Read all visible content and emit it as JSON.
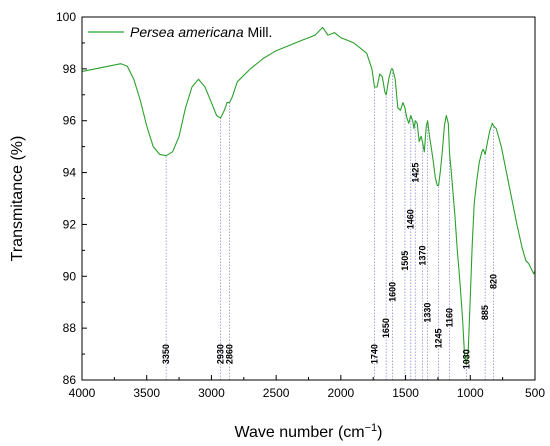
{
  "chart_data": {
    "type": "line",
    "xlabel_main": "Wave number (cm",
    "xlabel_sup": "−1",
    "xlabel_end": ")",
    "ylabel": "Transmitance (%)",
    "xlim": [
      4000,
      500
    ],
    "ylim": [
      86,
      100
    ],
    "x_ticks": [
      4000,
      3500,
      3000,
      2500,
      2000,
      1500,
      1000,
      500
    ],
    "y_ticks": [
      86,
      88,
      90,
      92,
      94,
      96,
      98,
      100
    ],
    "legend": {
      "italic": "Persea americana",
      "normal": " Mill.",
      "placement": "top-left"
    },
    "series": [
      {
        "name": "Persea americana Mill.",
        "color": "#2ca02c",
        "x": [
          4000,
          3900,
          3800,
          3700,
          3650,
          3600,
          3550,
          3500,
          3450,
          3400,
          3350,
          3300,
          3250,
          3200,
          3150,
          3100,
          3050,
          3000,
          2960,
          2930,
          2900,
          2880,
          2860,
          2840,
          2800,
          2700,
          2600,
          2500,
          2400,
          2300,
          2250,
          2200,
          2160,
          2140,
          2100,
          2050,
          2000,
          1950,
          1900,
          1850,
          1800,
          1760,
          1740,
          1720,
          1700,
          1680,
          1660,
          1650,
          1630,
          1610,
          1600,
          1580,
          1560,
          1540,
          1520,
          1505,
          1490,
          1475,
          1460,
          1445,
          1435,
          1425,
          1410,
          1395,
          1380,
          1370,
          1355,
          1340,
          1330,
          1315,
          1300,
          1285,
          1270,
          1255,
          1245,
          1230,
          1215,
          1200,
          1185,
          1170,
          1160,
          1150,
          1140,
          1120,
          1100,
          1080,
          1060,
          1045,
          1030,
          1015,
          1000,
          985,
          970,
          950,
          930,
          910,
          900,
          885,
          870,
          850,
          830,
          820,
          800,
          760,
          720,
          680,
          640,
          600,
          570,
          550,
          530,
          510,
          500
        ],
        "y": [
          97.9,
          98.0,
          98.1,
          98.2,
          98.1,
          97.6,
          96.8,
          95.8,
          95.0,
          94.7,
          94.65,
          94.8,
          95.4,
          96.5,
          97.3,
          97.6,
          97.3,
          96.7,
          96.2,
          96.1,
          96.4,
          96.7,
          96.7,
          96.9,
          97.5,
          98.0,
          98.4,
          98.7,
          98.9,
          99.1,
          99.2,
          99.3,
          99.5,
          99.6,
          99.3,
          99.4,
          99.2,
          99.1,
          99.0,
          98.8,
          98.6,
          98.0,
          97.3,
          97.3,
          97.8,
          97.7,
          97.1,
          97.0,
          97.6,
          98.0,
          98.0,
          97.6,
          96.5,
          96.4,
          96.7,
          96.5,
          96.1,
          95.9,
          96.2,
          96.0,
          95.7,
          96.0,
          95.9,
          95.2,
          95.4,
          95.2,
          94.8,
          95.8,
          96.0,
          95.4,
          94.9,
          94.4,
          93.8,
          93.5,
          93.5,
          94.1,
          94.9,
          95.8,
          96.2,
          95.9,
          94.7,
          94.2,
          93.6,
          92.4,
          91.0,
          89.8,
          88.4,
          87.0,
          86.6,
          87.2,
          89.2,
          91.2,
          92.8,
          93.7,
          94.4,
          94.8,
          94.9,
          94.7,
          95.1,
          95.6,
          95.9,
          95.8,
          95.7,
          95.0,
          94.0,
          93.0,
          92.0,
          91.1,
          90.6,
          90.5,
          90.3,
          90.1,
          90.2
        ]
      }
    ],
    "peak_labels": [
      {
        "label": "3350",
        "x": 3350,
        "label_y": 87.0
      },
      {
        "label": "2930",
        "x": 2930,
        "label_y": 87.0
      },
      {
        "label": "2860",
        "x": 2860,
        "label_y": 87.0
      },
      {
        "label": "1740",
        "x": 1740,
        "label_y": 87.0
      },
      {
        "label": "1650",
        "x": 1650,
        "label_y": 88.0
      },
      {
        "label": "1600",
        "x": 1600,
        "label_y": 89.4
      },
      {
        "label": "1505",
        "x": 1505,
        "label_y": 90.6
      },
      {
        "label": "1460",
        "x": 1460,
        "label_y": 92.2
      },
      {
        "label": "1425",
        "x": 1425,
        "label_y": 94.0
      },
      {
        "label": "1370",
        "x": 1370,
        "label_y": 90.8
      },
      {
        "label": "1330",
        "x": 1330,
        "label_y": 88.6
      },
      {
        "label": "1245",
        "x": 1245,
        "label_y": 87.6
      },
      {
        "label": "1160",
        "x": 1160,
        "label_y": 88.4
      },
      {
        "label": "1030",
        "x": 1030,
        "label_y": 86.8
      },
      {
        "label": "885",
        "x": 885,
        "label_y": 88.6
      },
      {
        "label": "820",
        "x": 820,
        "label_y": 89.8
      }
    ],
    "guide_color": "#8f8fd8",
    "grid": false
  }
}
